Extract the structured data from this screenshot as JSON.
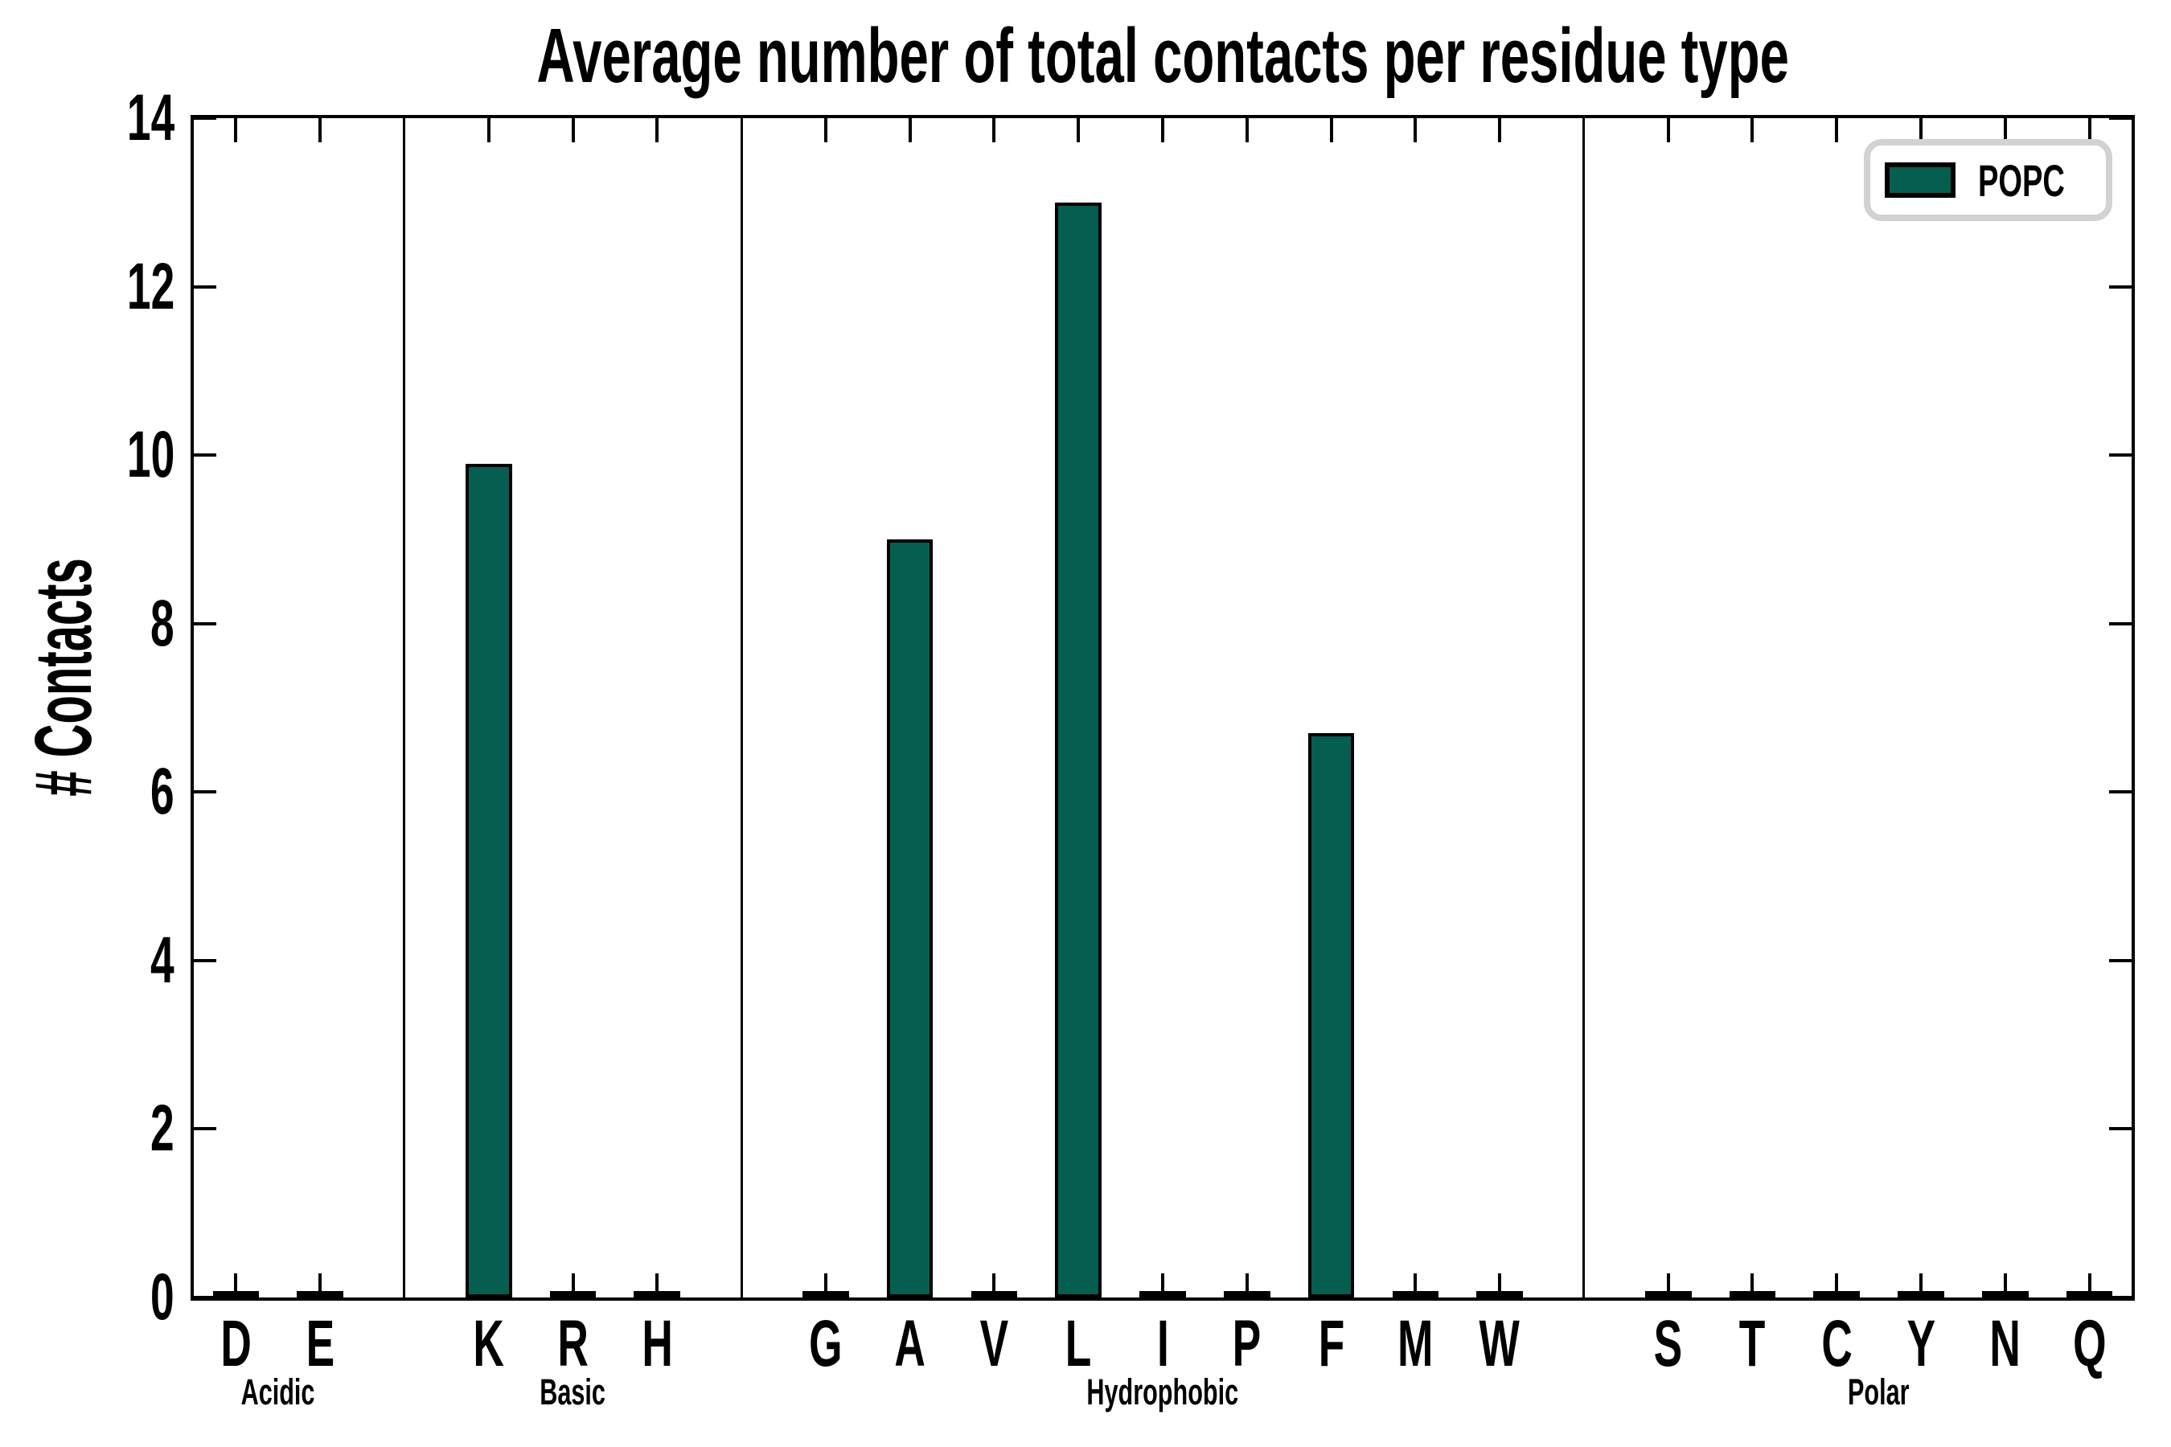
{
  "title": "Average number of total contacts per residue type",
  "colors": {
    "bar_fill": "#065e50",
    "bar_edge": "#000000",
    "axis": "#000000",
    "legend_border": "#d2d2d2",
    "background": "#ffffff"
  },
  "legend": {
    "label": "POPC"
  },
  "chart_data": {
    "type": "bar",
    "title": "Average number of total contacts per residue type",
    "xlabel": "",
    "ylabel": "# Contacts",
    "ylim": [
      0,
      14
    ],
    "yticks": [
      0,
      2,
      4,
      6,
      8,
      10,
      12,
      14
    ],
    "grid": false,
    "legend_position": "upper right",
    "categories": [
      "D",
      "E",
      "K",
      "R",
      "H",
      "G",
      "A",
      "V",
      "L",
      "I",
      "P",
      "F",
      "M",
      "W",
      "S",
      "T",
      "C",
      "Y",
      "N",
      "Q"
    ],
    "series": [
      {
        "name": "POPC",
        "color": "#065e50",
        "values": [
          0.05,
          0.05,
          9.9,
          0.05,
          0.05,
          0.05,
          9.0,
          0.05,
          13.0,
          0.05,
          0.05,
          6.7,
          0.05,
          0.05,
          0.05,
          0.05,
          0.05,
          0.05,
          0.05,
          0.05
        ]
      }
    ],
    "groups": [
      {
        "label": "Acidic",
        "residues": [
          "D",
          "E"
        ]
      },
      {
        "label": "Basic",
        "residues": [
          "K",
          "R",
          "H"
        ]
      },
      {
        "label": "Hydrophobic",
        "residues": [
          "G",
          "A",
          "V",
          "L",
          "I",
          "P",
          "F",
          "M",
          "W"
        ]
      },
      {
        "label": "Polar",
        "residues": [
          "S",
          "T",
          "C",
          "Y",
          "N",
          "Q"
        ]
      }
    ],
    "group_separators": true,
    "bar_width_fraction": 0.55
  }
}
